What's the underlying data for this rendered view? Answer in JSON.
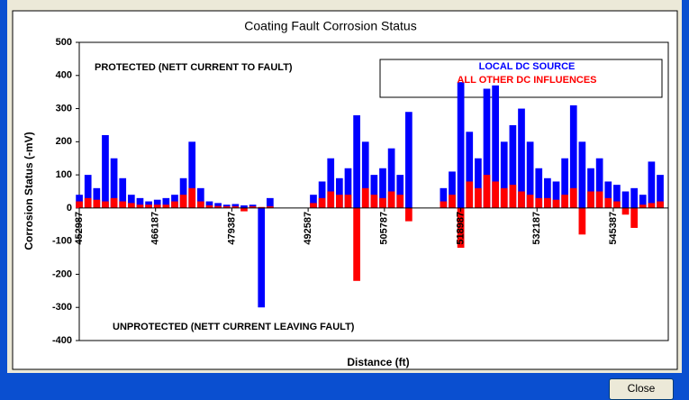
{
  "chart_data": {
    "type": "bar",
    "title": "Coating Fault Corrosion Status",
    "x_label": "Distance (ft)",
    "y_label": "Corrosion Status (-mV)",
    "annotations": [
      "PROTECTED (NETT CURRENT TO FAULT)",
      "UNPROTECTED (NETT CURRENT LEAVING FAULT)"
    ],
    "x": [
      453000,
      454500,
      456000,
      457500,
      459000,
      460500,
      462000,
      463500,
      465000,
      466500,
      468000,
      469500,
      471000,
      472500,
      474000,
      475500,
      477000,
      478500,
      480000,
      481500,
      483000,
      484500,
      486000,
      487500,
      489000,
      490500,
      492000,
      493500,
      495000,
      496500,
      498000,
      499500,
      501000,
      502500,
      504000,
      505500,
      507000,
      508500,
      510000,
      511500,
      513000,
      514500,
      516000,
      517500,
      519000,
      520500,
      522000,
      523500,
      525000,
      526500,
      528000,
      529500,
      531000,
      532500,
      534000,
      535500,
      537000,
      538500,
      540000,
      541500,
      543000,
      544500,
      546000,
      547500,
      549000,
      550500,
      552000,
      553500
    ],
    "series": [
      {
        "name": "LOCAL DC SOURCE",
        "color": "#0000ff",
        "values": [
          40,
          100,
          60,
          220,
          150,
          90,
          40,
          30,
          20,
          25,
          30,
          40,
          90,
          200,
          60,
          20,
          15,
          10,
          12,
          8,
          10,
          -300,
          30,
          null,
          null,
          null,
          null,
          40,
          80,
          150,
          90,
          120,
          280,
          200,
          100,
          120,
          180,
          100,
          290,
          null,
          null,
          null,
          60,
          110,
          380,
          230,
          150,
          360,
          370,
          200,
          250,
          300,
          200,
          120,
          90,
          80,
          150,
          310,
          200,
          120,
          150,
          80,
          70,
          50,
          60,
          40,
          140,
          100
        ]
      },
      {
        "name": "ALL OTHER DC INFLUENCES",
        "color": "#ff0000",
        "values": [
          20,
          30,
          25,
          20,
          30,
          20,
          15,
          10,
          10,
          10,
          10,
          20,
          40,
          60,
          20,
          8,
          6,
          5,
          5,
          -10,
          5,
          3,
          5,
          null,
          null,
          null,
          null,
          15,
          30,
          50,
          40,
          40,
          -220,
          60,
          40,
          30,
          50,
          40,
          -40,
          null,
          null,
          null,
          20,
          40,
          -120,
          80,
          60,
          100,
          80,
          60,
          70,
          50,
          40,
          30,
          30,
          25,
          40,
          60,
          -80,
          50,
          50,
          30,
          20,
          -20,
          -60,
          10,
          15,
          20
        ]
      }
    ],
    "xlim": [
      452987,
      554900
    ],
    "xticks": [
      452987,
      466187,
      479387,
      492587,
      505787,
      518987,
      532187,
      545387
    ],
    "ylim": [
      -400,
      500
    ],
    "yticks": [
      -400,
      -300,
      -200,
      -100,
      0,
      100,
      200,
      300,
      400,
      500
    ],
    "grid": false
  },
  "button": "Close"
}
